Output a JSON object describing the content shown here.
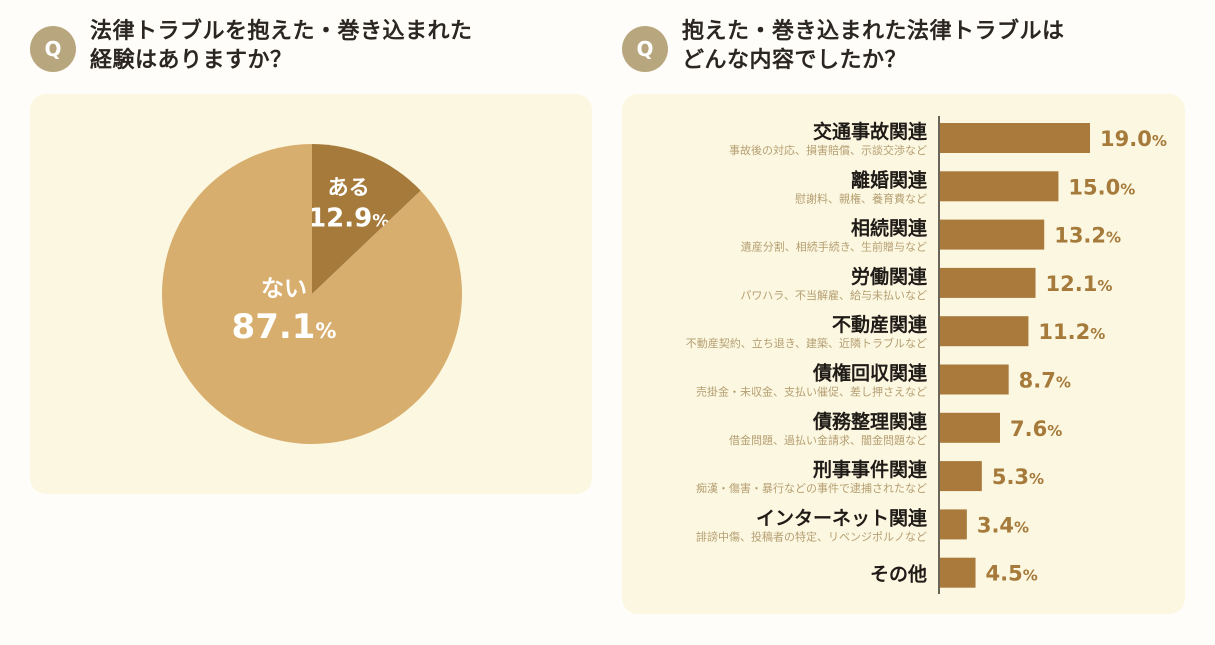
{
  "left": {
    "badge": "Q",
    "question": "法律トラブルを抱えた・巻き込まれた\n経験はありますか？"
  },
  "right": {
    "badge": "Q",
    "question": "抱えた・巻き込まれた法律トラブルは\nどんな内容でしたか？"
  },
  "colors": {
    "badge": "#b8a77e",
    "panel": "#fcf7e1",
    "pie_major": "#d8ae6e",
    "pie_minor": "#a57a3a",
    "bar": "#a97a3b",
    "subtitle": "#b59f72"
  },
  "chart_data": [
    {
      "type": "pie",
      "unit": "%",
      "slices": [
        {
          "label": "ある",
          "value": 12.9,
          "color": "#a57a3a"
        },
        {
          "label": "ない",
          "value": 87.1,
          "color": "#d8ae6e"
        }
      ]
    },
    {
      "type": "bar",
      "orientation": "horizontal",
      "unit": "%",
      "categories": [
        "交通事故関連",
        "離婚関連",
        "相続関連",
        "労働関連",
        "不動産関連",
        "債権回収関連",
        "債務整理関連",
        "刑事事件関連",
        "インターネット関連",
        "その他"
      ],
      "subtitles": [
        "事故後の対応、損害賠償、示談交渉など",
        "慰謝料、親権、養育費など",
        "遺産分割、相続手続き、生前贈与など",
        "パワハラ、不当解雇、給与未払いなど",
        "不動産契約、立ち退き、建築、近隣トラブルなど",
        "売掛金・未収金、支払い催促、差し押さえなど",
        "借金問題、過払い金請求、闇金問題など",
        "痴漢・傷害・暴行などの事件で逮捕されたなど",
        "誹謗中傷、投稿者の特定、リベンジポルノなど",
        ""
      ],
      "values": [
        19.0,
        15.0,
        13.2,
        12.1,
        11.2,
        8.7,
        7.6,
        5.3,
        3.4,
        4.5
      ],
      "value_labels": [
        "19.0",
        "15.0",
        "13.2",
        "12.1",
        "11.2",
        "8.7",
        "7.6",
        "5.3",
        "3.4",
        "4.5"
      ],
      "xlim": [
        0,
        19
      ]
    }
  ]
}
